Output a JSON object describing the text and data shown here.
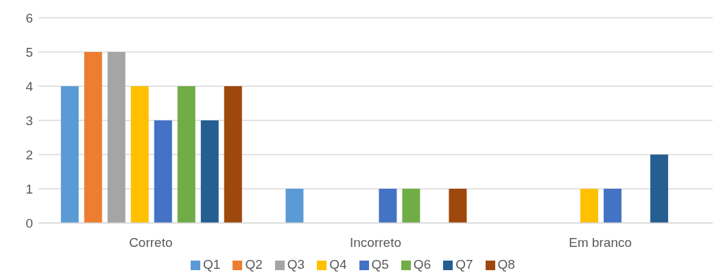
{
  "chart_data": {
    "type": "bar",
    "categories": [
      "Correto",
      "Incorreto",
      "Em branco"
    ],
    "series": [
      {
        "name": "Q1",
        "color": "#5b9bd5",
        "values": [
          4,
          1,
          0
        ]
      },
      {
        "name": "Q2",
        "color": "#ed7d31",
        "values": [
          5,
          0,
          0
        ]
      },
      {
        "name": "Q3",
        "color": "#a5a5a5",
        "values": [
          5,
          0,
          0
        ]
      },
      {
        "name": "Q4",
        "color": "#ffc000",
        "values": [
          4,
          0,
          1
        ]
      },
      {
        "name": "Q5",
        "color": "#4472c4",
        "values": [
          3,
          1,
          1
        ]
      },
      {
        "name": "Q6",
        "color": "#70ad47",
        "values": [
          4,
          1,
          0
        ]
      },
      {
        "name": "Q7",
        "color": "#255e91",
        "values": [
          3,
          0,
          2
        ]
      },
      {
        "name": "Q8",
        "color": "#9e480e",
        "values": [
          4,
          1,
          0
        ]
      }
    ],
    "ylim": [
      0,
      6
    ],
    "yticks": [
      0,
      1,
      2,
      3,
      4,
      5,
      6
    ],
    "grid": "y",
    "legend": "bottom"
  }
}
